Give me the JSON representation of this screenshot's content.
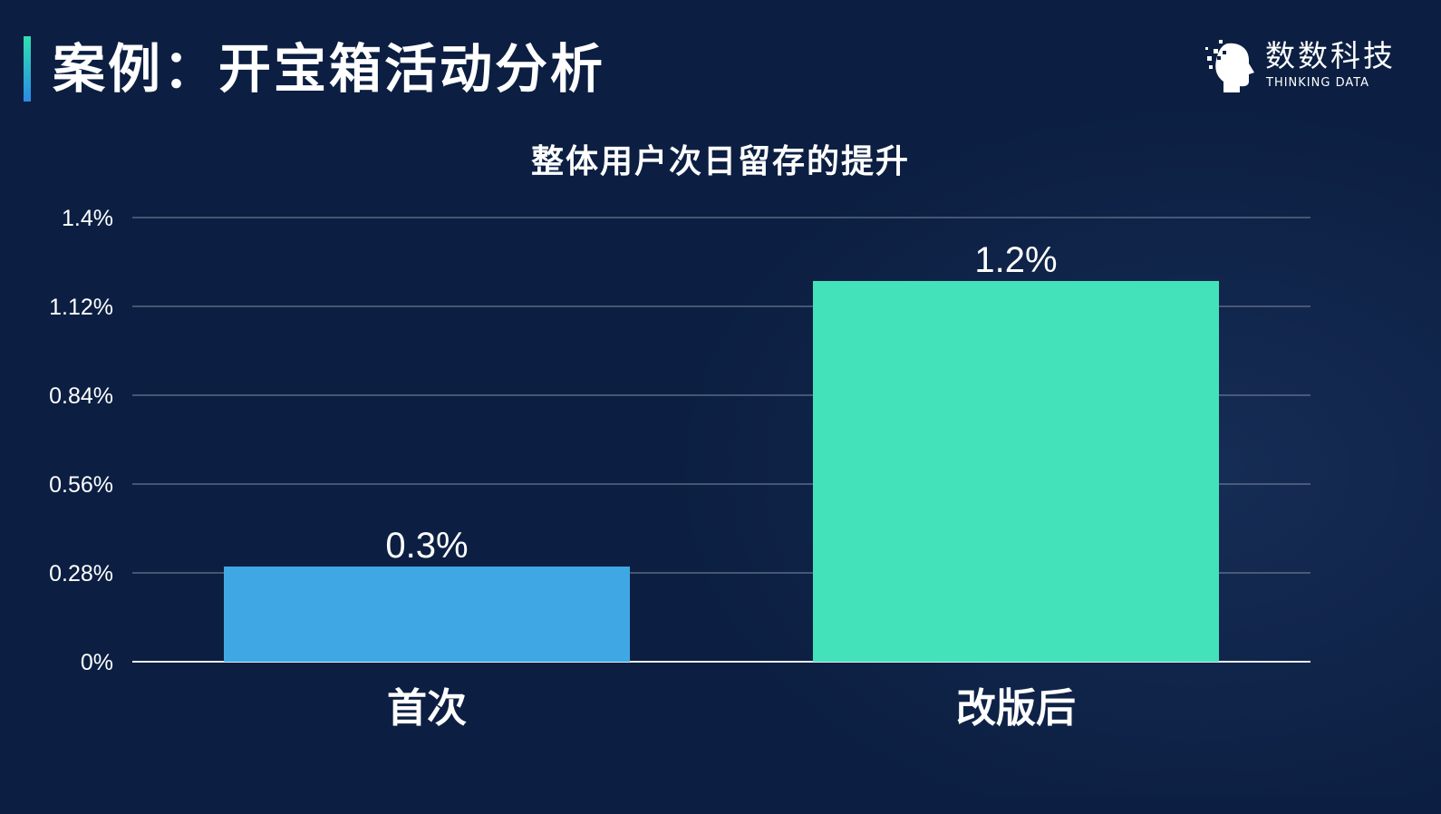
{
  "slide": {
    "title": "案例：开宝箱活动分析"
  },
  "logo": {
    "name_cn": "数数科技",
    "name_en": "THINKING DATA",
    "icon": "head-profile-icon"
  },
  "colors": {
    "background": "#0c1f42",
    "bar_first": "#3fa8e4",
    "bar_after": "#44e2bb"
  },
  "chart_data": {
    "type": "bar",
    "title": "整体用户次日留存的提升",
    "categories": [
      "首次",
      "改版后"
    ],
    "values": [
      0.3,
      1.2
    ],
    "value_labels": [
      "0.3%",
      "1.2%"
    ],
    "ylim": [
      0,
      1.4
    ],
    "yticks": [
      0,
      0.28,
      0.56,
      0.84,
      1.12,
      1.4
    ],
    "ytick_labels": [
      "0%",
      "0.28%",
      "0.56%",
      "0.84%",
      "1.12%",
      "1.4%"
    ],
    "xlabel": "",
    "ylabel": "",
    "grid": true,
    "legend": "none"
  }
}
